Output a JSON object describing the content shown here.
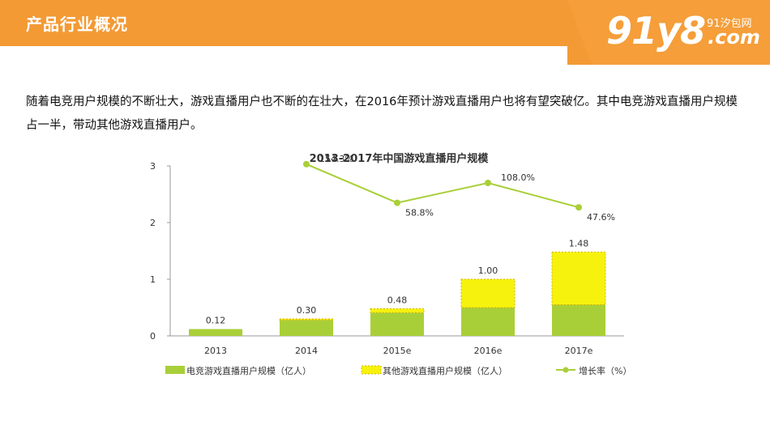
{
  "header": {
    "title": "产品行业概况",
    "logo_main": "91y8",
    "logo_sub": "91汐包网",
    "logo_dotcom": ".com",
    "colors": {
      "orange": "#f39a34",
      "orange_light": "#f7b25a"
    }
  },
  "intro_text": "随着电竞用户规模的不断壮大，游戏直播用户也不断的在壮大，在2016年预计游戏直播用户也将有望突破亿。其中电竞游戏直播用户规模占一半，带动其他游戏直播用户。",
  "chart_data": {
    "type": "bar",
    "title": "2013-2017年中国游戏直播用户规模",
    "categories": [
      "2013",
      "2014",
      "2015e",
      "2016e",
      "2017e"
    ],
    "ylim": [
      0,
      3
    ],
    "yticks": [
      "0",
      "1",
      "2",
      "3"
    ],
    "series": [
      {
        "name": "电竞游戏直播用户规模（亿人）",
        "values": [
          0.12,
          0.28,
          0.41,
          0.5,
          0.55
        ],
        "color": "#a9cf38"
      },
      {
        "name": "其他游戏直播用户规模（亿人）",
        "values": [
          0.0,
          0.02,
          0.07,
          0.5,
          0.93
        ],
        "color": "#f6f20e"
      }
    ],
    "totals": [
      "0.12",
      "0.30",
      "0.48",
      "1.00",
      "1.48"
    ],
    "growth": {
      "name": "增长率（%）",
      "categories": [
        "2014",
        "2015e",
        "2016e",
        "2017e"
      ],
      "values": [
        154.3,
        58.8,
        108.0,
        47.6
      ],
      "labels": [
        "154.3%",
        "58.8%",
        "108.0%",
        "47.6%"
      ],
      "color": "#a9cf38"
    },
    "legend_position": "bottom"
  }
}
